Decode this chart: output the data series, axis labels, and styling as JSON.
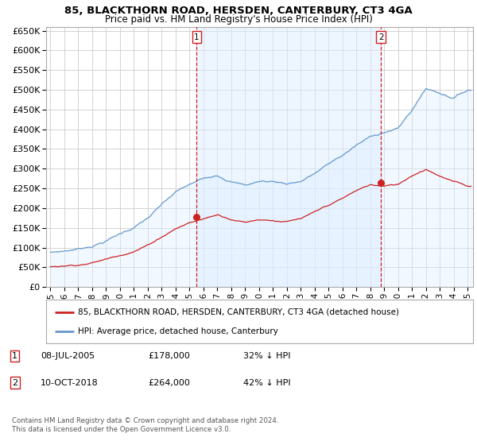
{
  "title": "85, BLACKTHORN ROAD, HERSDEN, CANTERBURY, CT3 4GA",
  "subtitle": "Price paid vs. HM Land Registry's House Price Index (HPI)",
  "ylim": [
    0,
    660000
  ],
  "yticks": [
    0,
    50000,
    100000,
    150000,
    200000,
    250000,
    300000,
    350000,
    400000,
    450000,
    500000,
    550000,
    600000,
    650000
  ],
  "xlim_left": 1994.7,
  "xlim_right": 2025.4,
  "background_color": "#ffffff",
  "grid_color": "#cccccc",
  "line_color_hpi": "#6699cc",
  "fill_color_hpi": "#ddeeff",
  "line_color_property": "#cc2222",
  "purchase1_x": 2005.52,
  "purchase1_y": 178000,
  "purchase2_x": 2018.78,
  "purchase2_y": 264000,
  "legend_property": "85, BLACKTHORN ROAD, HERSDEN, CANTERBURY, CT3 4GA (detached house)",
  "legend_hpi": "HPI: Average price, detached house, Canterbury",
  "annotation1_date": "08-JUL-2005",
  "annotation1_price": "£178,000",
  "annotation1_hpi": "32% ↓ HPI",
  "annotation2_date": "10-OCT-2018",
  "annotation2_price": "£264,000",
  "annotation2_hpi": "42% ↓ HPI",
  "footer": "Contains HM Land Registry data © Crown copyright and database right 2024.\nThis data is licensed under the Open Government Licence v3.0.",
  "title_fontsize": 9.5,
  "subtitle_fontsize": 8.5,
  "tick_fontsize": 7.5,
  "ytick_fontsize": 8
}
